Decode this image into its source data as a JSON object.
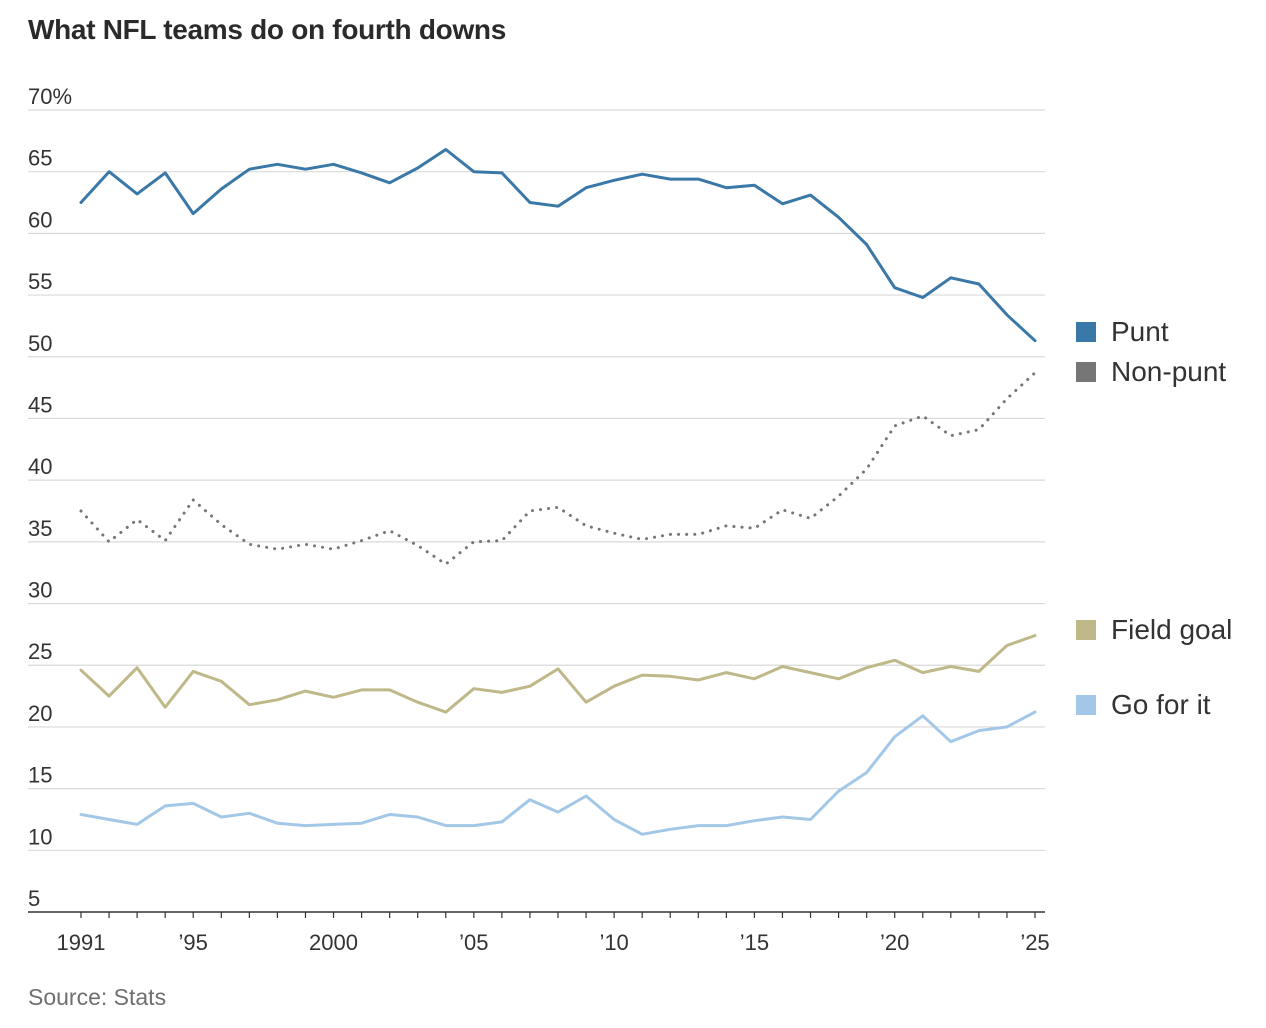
{
  "title": "What NFL teams do on fourth downs",
  "source": "Source: Stats",
  "colors": {
    "punt": "#3a78a7",
    "nonpunt": "#767676",
    "fieldgoal": "#bfb888",
    "goforit": "#a3c8e7",
    "grid": "#d9d9d9",
    "axis": "#333333"
  },
  "chart_data": {
    "type": "line",
    "title": "What NFL teams do on fourth downs",
    "xlabel": "",
    "ylabel": "",
    "x": [
      1991,
      1992,
      1993,
      1994,
      1995,
      1996,
      1997,
      1998,
      1999,
      2000,
      2001,
      2002,
      2003,
      2004,
      2005,
      2006,
      2007,
      2008,
      2009,
      2010,
      2011,
      2012,
      2013,
      2014,
      2015,
      2016,
      2017,
      2018,
      2019,
      2020,
      2021,
      2022,
      2023,
      2024,
      2025
    ],
    "xlim": [
      1991,
      2025
    ],
    "ylim": [
      5,
      70
    ],
    "yticks": [
      {
        "value": 5,
        "label": "5"
      },
      {
        "value": 10,
        "label": "10"
      },
      {
        "value": 15,
        "label": "15"
      },
      {
        "value": 20,
        "label": "20"
      },
      {
        "value": 25,
        "label": "25"
      },
      {
        "value": 30,
        "label": "30"
      },
      {
        "value": 35,
        "label": "35"
      },
      {
        "value": 40,
        "label": "40"
      },
      {
        "value": 45,
        "label": "45"
      },
      {
        "value": 50,
        "label": "50"
      },
      {
        "value": 55,
        "label": "55"
      },
      {
        "value": 60,
        "label": "60"
      },
      {
        "value": 65,
        "label": "65"
      },
      {
        "value": 70,
        "label": "70%"
      }
    ],
    "xticks": [
      {
        "value": 1991,
        "label": "1991"
      },
      {
        "value": 1995,
        "label": "’95"
      },
      {
        "value": 2000,
        "label": "2000"
      },
      {
        "value": 2005,
        "label": "’05"
      },
      {
        "value": 2010,
        "label": "’10"
      },
      {
        "value": 2015,
        "label": "’15"
      },
      {
        "value": 2020,
        "label": "’20"
      },
      {
        "value": 2025,
        "label": "’25"
      }
    ],
    "legend": [
      {
        "key": "punt",
        "label": "Punt",
        "color": "#3a78a7"
      },
      {
        "key": "nonpunt",
        "label": "Non-punt",
        "color": "#767676"
      },
      {
        "key": "fieldgoal",
        "label": "Field goal",
        "color": "#bfb888"
      },
      {
        "key": "goforit",
        "label": "Go for it",
        "color": "#a3c8e7"
      }
    ],
    "series": [
      {
        "key": "punt",
        "name": "Punt",
        "color": "#3a78a7",
        "style": "solid",
        "values": [
          62.5,
          65.0,
          63.2,
          64.9,
          61.6,
          63.6,
          65.2,
          65.6,
          65.2,
          65.6,
          64.9,
          64.1,
          65.3,
          66.8,
          65.0,
          64.9,
          62.5,
          62.2,
          63.7,
          64.3,
          64.8,
          64.4,
          64.4,
          63.7,
          63.9,
          62.4,
          63.1,
          61.3,
          59.1,
          55.6,
          54.8,
          56.4,
          55.9,
          53.4,
          51.3
        ]
      },
      {
        "key": "nonpunt",
        "name": "Non-punt",
        "color": "#767676",
        "style": "dotted",
        "values": [
          37.5,
          35.0,
          36.8,
          35.1,
          38.4,
          36.4,
          34.8,
          34.4,
          34.8,
          34.4,
          35.1,
          35.9,
          34.7,
          33.2,
          35.0,
          35.1,
          37.5,
          37.8,
          36.3,
          35.7,
          35.2,
          35.6,
          35.6,
          36.3,
          36.1,
          37.6,
          36.9,
          38.7,
          40.9,
          44.4,
          45.2,
          43.6,
          44.1,
          46.6,
          48.7
        ]
      },
      {
        "key": "fieldgoal",
        "name": "Field goal",
        "color": "#bfb888",
        "style": "solid",
        "values": [
          24.6,
          22.5,
          24.8,
          21.6,
          24.5,
          23.7,
          21.8,
          22.2,
          22.9,
          22.4,
          23.0,
          23.0,
          22.0,
          21.2,
          23.1,
          22.8,
          23.3,
          24.7,
          22.0,
          23.3,
          24.2,
          24.1,
          23.8,
          24.4,
          23.9,
          24.9,
          24.4,
          23.9,
          24.8,
          25.4,
          24.4,
          24.9,
          24.5,
          26.6,
          27.4
        ]
      },
      {
        "key": "goforit",
        "name": "Go for it",
        "color": "#a3c8e7",
        "style": "solid",
        "values": [
          12.9,
          12.5,
          12.1,
          13.6,
          13.8,
          12.7,
          13.0,
          12.2,
          12.0,
          12.1,
          12.2,
          12.9,
          12.7,
          12.0,
          12.0,
          12.3,
          14.1,
          13.1,
          14.4,
          12.5,
          11.3,
          11.7,
          12.0,
          12.0,
          12.4,
          12.7,
          12.5,
          14.8,
          16.3,
          19.2,
          20.9,
          18.8,
          19.7,
          20.0,
          21.2
        ]
      }
    ]
  }
}
